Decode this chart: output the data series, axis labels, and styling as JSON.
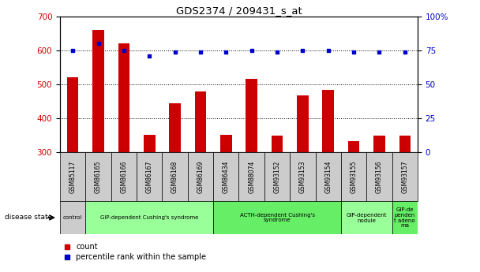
{
  "title": "GDS2374 / 209431_s_at",
  "samples": [
    "GSM85117",
    "GSM86165",
    "GSM86166",
    "GSM86167",
    "GSM86168",
    "GSM86169",
    "GSM86434",
    "GSM88074",
    "GSM93152",
    "GSM93153",
    "GSM93154",
    "GSM93155",
    "GSM93156",
    "GSM93157"
  ],
  "counts": [
    520,
    660,
    620,
    352,
    445,
    478,
    352,
    517,
    350,
    468,
    483,
    333,
    350,
    350
  ],
  "percentiles": [
    75,
    80,
    75,
    71,
    74,
    74,
    74,
    75,
    74,
    75,
    75,
    74,
    74,
    74
  ],
  "bar_color": "#cc0000",
  "dot_color": "#0000cc",
  "ylim_left": [
    300,
    700
  ],
  "ylim_right": [
    0,
    100
  ],
  "yticks_left": [
    300,
    400,
    500,
    600,
    700
  ],
  "yticks_right": [
    0,
    25,
    50,
    75,
    100
  ],
  "grid_values": [
    400,
    500,
    600
  ],
  "disease_groups": [
    {
      "label": "control",
      "start": 0,
      "end": 1,
      "color": "#cccccc"
    },
    {
      "label": "GIP-dependent Cushing's syndrome",
      "start": 1,
      "end": 6,
      "color": "#99ff99"
    },
    {
      "label": "ACTH-dependent Cushing's\nsyndrome",
      "start": 6,
      "end": 11,
      "color": "#66ee66"
    },
    {
      "label": "GIP-dependent\nnodule",
      "start": 11,
      "end": 13,
      "color": "#99ff99"
    },
    {
      "label": "GIP-de\npenden\nt adeno\nma",
      "start": 13,
      "end": 14,
      "color": "#66ee66"
    }
  ],
  "legend_count_label": "count",
  "legend_pct_label": "percentile rank within the sample",
  "disease_state_label": "disease state",
  "bg_color": "#ffffff",
  "tick_label_color_left": "#cc0000",
  "tick_label_color_right": "#0000cc"
}
